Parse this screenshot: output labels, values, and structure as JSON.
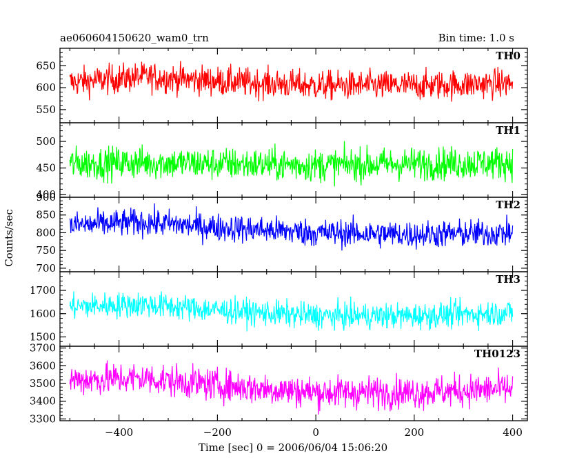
{
  "header": {
    "title": "ae060604150620_wam0_trn",
    "bin_time": "Bin time: 1.0 s"
  },
  "chart_data": {
    "type": "line",
    "xlabel": "Time [sec] 0 = 2006/06/04 15:06:20",
    "ylabel": "Counts/sec",
    "xlim": [
      -520,
      430
    ],
    "x_ticks": [
      -400,
      -200,
      0,
      200,
      400
    ],
    "x_tick_labels": [
      "−400",
      "−200",
      "0",
      "200",
      "400"
    ],
    "x_range": [
      -500,
      400
    ],
    "bin_seconds": 1.0,
    "panels": [
      {
        "name": "TH0",
        "color": "#ff0000",
        "ylim": [
          520,
          690
        ],
        "y_ticks": [
          550,
          600,
          650
        ],
        "y_tick_labels": [
          "550",
          "600",
          "650"
        ],
        "trend": [
          [
            -500,
            612
          ],
          [
            -350,
            625
          ],
          [
            -200,
            615
          ],
          [
            0,
            605
          ],
          [
            200,
            605
          ],
          [
            400,
            610
          ]
        ],
        "noise_amplitude": 24
      },
      {
        "name": "TH1",
        "color": "#00ff00",
        "ylim": [
          395,
          535
        ],
        "y_ticks": [
          400,
          450,
          500
        ],
        "y_tick_labels": [
          "400",
          "450",
          "500"
        ],
        "trend": [
          [
            -500,
            458
          ],
          [
            -350,
            460
          ],
          [
            -200,
            458
          ],
          [
            0,
            455
          ],
          [
            200,
            458
          ],
          [
            400,
            460
          ]
        ],
        "noise_amplitude": 22
      },
      {
        "name": "TH2",
        "color": "#0000ff",
        "ylim": [
          690,
          900
        ],
        "y_ticks": [
          700,
          750,
          800,
          850,
          900
        ],
        "y_tick_labels": [
          "700",
          "750",
          "800",
          "850",
          "900"
        ],
        "trend": [
          [
            -500,
            820
          ],
          [
            -350,
            830
          ],
          [
            -200,
            815
          ],
          [
            0,
            800
          ],
          [
            200,
            795
          ],
          [
            400,
            800
          ]
        ],
        "noise_amplitude": 28
      },
      {
        "name": "TH3",
        "color": "#00ffff",
        "ylim": [
          1460,
          1780
        ],
        "y_ticks": [
          1500,
          1600,
          1700
        ],
        "y_tick_labels": [
          "1500",
          "1600",
          "1700"
        ],
        "trend": [
          [
            -500,
            1630
          ],
          [
            -350,
            1640
          ],
          [
            -200,
            1615
          ],
          [
            0,
            1590
          ],
          [
            200,
            1590
          ],
          [
            400,
            1605
          ]
        ],
        "noise_amplitude": 40
      },
      {
        "name": "TH0123",
        "color": "#ff00ff",
        "ylim": [
          3290,
          3710
        ],
        "y_ticks": [
          3300,
          3400,
          3500,
          3600,
          3700
        ],
        "y_tick_labels": [
          "3300",
          "3400",
          "3500",
          "3600",
          "3700"
        ],
        "trend": [
          [
            -500,
            3520
          ],
          [
            -350,
            3530
          ],
          [
            -200,
            3490
          ],
          [
            0,
            3450
          ],
          [
            200,
            3450
          ],
          [
            400,
            3470
          ]
        ],
        "noise_amplitude": 65
      }
    ]
  }
}
